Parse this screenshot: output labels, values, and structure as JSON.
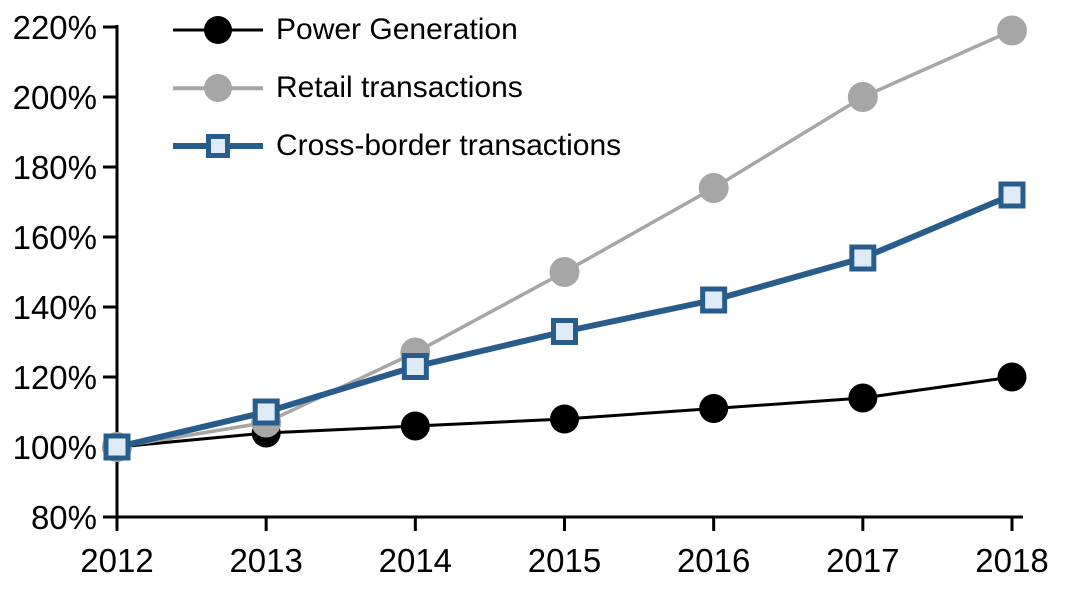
{
  "chart_data": {
    "type": "line",
    "title": "",
    "xlabel": "",
    "ylabel": "",
    "categories": [
      "2012",
      "2013",
      "2014",
      "2015",
      "2016",
      "2017",
      "2018"
    ],
    "y_axis": {
      "min": 80,
      "max": 220,
      "step": 20,
      "unit": "%",
      "tick_labels": [
        "80%",
        "100%",
        "120%",
        "140%",
        "160%",
        "180%",
        "200%",
        "220%"
      ]
    },
    "grid": false,
    "legend_position": "top-left-inside",
    "axis_color": "#000000",
    "series": [
      {
        "name": "Power Generation",
        "color": "#000000",
        "marker": "circle",
        "marker_fill": "#000000",
        "line_width": 3,
        "marker_size": 29,
        "values": [
          100,
          104,
          106,
          108,
          111,
          114,
          120
        ]
      },
      {
        "name": "Retail transactions",
        "color": "#A6A6A6",
        "marker": "circle",
        "marker_fill": "#A6A6A6",
        "line_width": 3.5,
        "marker_size": 30,
        "values": [
          100,
          107,
          127,
          150,
          174,
          200,
          219
        ]
      },
      {
        "name": "Cross-border transactions",
        "color": "#275C8B",
        "marker": "square",
        "marker_fill": "#DEEBF7",
        "line_width": 6,
        "marker_size": 27,
        "values": [
          100,
          110,
          123,
          133,
          142,
          154,
          172
        ]
      }
    ]
  }
}
